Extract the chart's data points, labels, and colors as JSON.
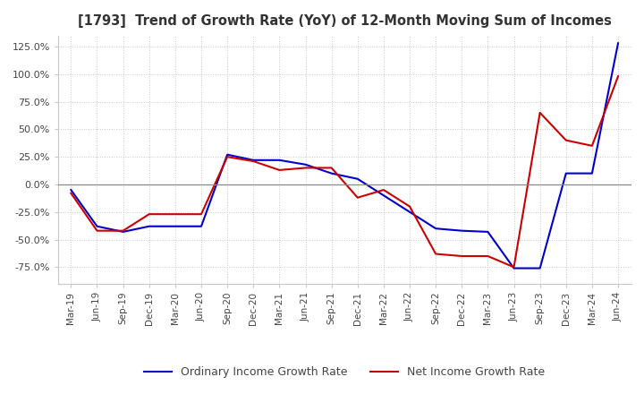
{
  "title": "[1793]  Trend of Growth Rate (YoY) of 12-Month Moving Sum of Incomes",
  "ylim": [
    -90,
    135
  ],
  "yticks": [
    -75,
    -50,
    -25,
    0,
    25,
    50,
    75,
    100,
    125
  ],
  "background_color": "#ffffff",
  "grid_color": "#c8c8c8",
  "ordinary_color": "#0000cc",
  "net_color": "#cc0000",
  "legend_ordinary": "Ordinary Income Growth Rate",
  "legend_net": "Net Income Growth Rate",
  "x_labels": [
    "Mar-19",
    "Jun-19",
    "Sep-19",
    "Dec-19",
    "Mar-20",
    "Jun-20",
    "Sep-20",
    "Dec-20",
    "Mar-21",
    "Jun-21",
    "Sep-21",
    "Dec-21",
    "Mar-22",
    "Jun-22",
    "Sep-22",
    "Dec-22",
    "Mar-23",
    "Jun-23",
    "Sep-23",
    "Dec-23",
    "Mar-24",
    "Jun-24"
  ],
  "ordinary_income": [
    -5,
    -38,
    -43,
    -38,
    -38,
    -38,
    27,
    22,
    22,
    18,
    10,
    5,
    -10,
    -25,
    -40,
    -42,
    -43,
    -76,
    -76,
    10,
    10,
    128
  ],
  "net_income": [
    -8,
    -42,
    -42,
    -27,
    -27,
    -27,
    25,
    21,
    13,
    15,
    15,
    -12,
    -5,
    -20,
    -63,
    -65,
    -65,
    -75,
    65,
    40,
    35,
    98
  ]
}
